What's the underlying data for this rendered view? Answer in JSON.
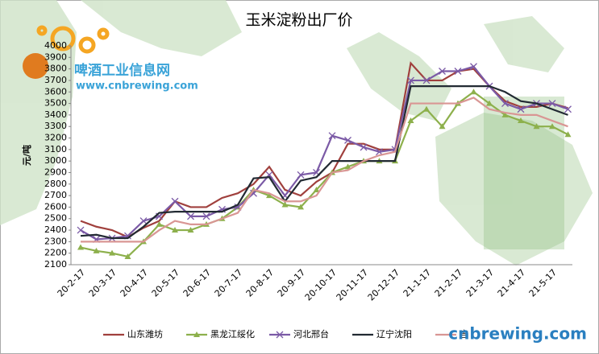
{
  "chart_data": {
    "type": "line",
    "title": "玉米淀粉出厂价",
    "y_label": "元/吨",
    "categories": [
      "20-2-17",
      null,
      "20-3-17",
      null,
      "20-4-17",
      null,
      "20-5-17",
      null,
      "20-6-17",
      null,
      "20-7-17",
      null,
      "20-8-17",
      null,
      "20-9-17",
      null,
      "20-10-17",
      null,
      "20-11-17",
      null,
      "20-12-17",
      null,
      "21-1-17",
      null,
      "21-2-17",
      null,
      "21-3-17",
      null,
      "21-4-17",
      null,
      "21-5-17",
      null
    ],
    "series": [
      {
        "name": "山东潍坊",
        "color": "#a0403d",
        "marker": null,
        "values": [
          2480,
          2430,
          2400,
          2340,
          2420,
          2480,
          2650,
          2600,
          2600,
          2680,
          2720,
          2800,
          2950,
          2750,
          2700,
          2820,
          2900,
          3150,
          3150,
          3100,
          3100,
          3850,
          3700,
          3700,
          3780,
          3800,
          3650,
          3520,
          3470,
          3470,
          3500,
          3460
        ]
      },
      {
        "name": "黑龙江绥化",
        "color": "#8db04c",
        "marker": "triangle",
        "values": [
          2250,
          2220,
          2200,
          2170,
          2300,
          2450,
          2400,
          2400,
          2450,
          2500,
          2600,
          2750,
          2700,
          2620,
          2600,
          2750,
          2900,
          2950,
          3000,
          3000,
          3000,
          3350,
          3450,
          3300,
          3500,
          3600,
          3500,
          3400,
          3350,
          3300,
          3300,
          3230
        ]
      },
      {
        "name": "河北邢台",
        "color": "#7b5aa6",
        "marker": "x",
        "values": [
          2400,
          2320,
          2330,
          2350,
          2480,
          2520,
          2650,
          2520,
          2520,
          2580,
          2600,
          2720,
          2880,
          2700,
          2880,
          2900,
          3220,
          3180,
          3120,
          3080,
          3100,
          3700,
          3700,
          3780,
          3780,
          3820,
          3650,
          3500,
          3450,
          3500,
          3500,
          3450
        ]
      },
      {
        "name": "辽宁沈阳",
        "color": "#222a33",
        "marker": null,
        "values": [
          2350,
          2360,
          2330,
          2330,
          2430,
          2550,
          2560,
          2560,
          2560,
          2560,
          2620,
          2850,
          2860,
          2650,
          2830,
          2860,
          3000,
          3000,
          3000,
          3000,
          3000,
          3650,
          3650,
          3650,
          3650,
          3650,
          3650,
          3600,
          3520,
          3500,
          3450,
          3400
        ]
      },
      {
        "name": "吉",
        "color": "#d99694",
        "marker": null,
        "values": [
          2300,
          2300,
          2300,
          2300,
          2300,
          2400,
          2480,
          2450,
          2450,
          2500,
          2550,
          2750,
          2720,
          2650,
          2650,
          2700,
          2900,
          2920,
          3000,
          3050,
          3080,
          3500,
          3500,
          3500,
          3500,
          3550,
          3450,
          3420,
          3400,
          3400,
          3350,
          3300
        ]
      }
    ],
    "ylim": [
      2100,
      4000
    ],
    "yticks": [
      2100,
      2200,
      2300,
      2400,
      2500,
      2600,
      2700,
      2800,
      2900,
      3000,
      3100,
      3200,
      3300,
      3400,
      3500,
      3600,
      3700,
      3800,
      3900,
      4000
    ],
    "grid": false
  },
  "watermark": {
    "site_name": "啤酒工业信息网",
    "site_url": "www.cnbrewing.com",
    "corner_url": "cnbrewing.com"
  }
}
